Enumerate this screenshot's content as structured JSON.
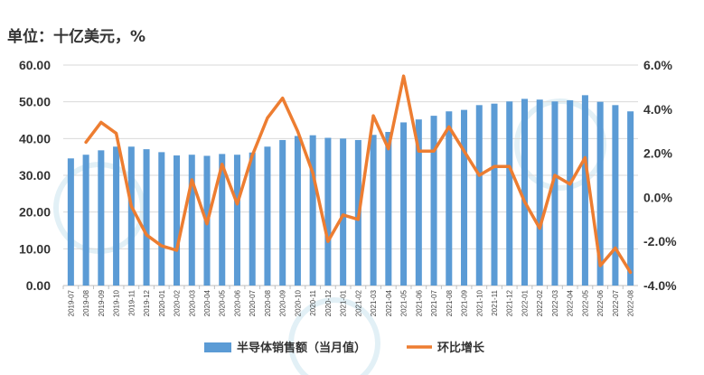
{
  "unit_label": "单位：十亿美元，%",
  "colors": {
    "bar": "#5b9bd5",
    "line": "#ed7d31",
    "grid": "#d9d9d9",
    "axis": "#bfbfbf",
    "watermark": "#d6eaf2"
  },
  "chart_data": {
    "type": "bar+line",
    "title": "",
    "grid": true,
    "legend_position": "bottom",
    "categories": [
      "2019-07",
      "2019-08",
      "2019-09",
      "2019-10",
      "2019-11",
      "2019-12",
      "2020-01",
      "2020-02",
      "2020-03",
      "2020-04",
      "2020-05",
      "2020-06",
      "2020-07",
      "2020-08",
      "2020-09",
      "2020-10",
      "2020-11",
      "2020-12",
      "2021-01",
      "2021-02",
      "2021-03",
      "2021-04",
      "2021-05",
      "2021-06",
      "2021-07",
      "2021-08",
      "2021-09",
      "2021-10",
      "2021-11",
      "2021-12",
      "2022-01",
      "2022-02",
      "2022-03",
      "2022-04",
      "2022-05",
      "2022-06",
      "2022-07",
      "2022-08"
    ],
    "left_axis": {
      "ylim": [
        0,
        60
      ],
      "ticks": [
        "0.00",
        "10.00",
        "20.00",
        "30.00",
        "40.00",
        "50.00",
        "60.00"
      ]
    },
    "right_axis": {
      "ylim": [
        -4,
        6
      ],
      "ticks": [
        "-4.0%",
        "-2.0%",
        "0.0%",
        "2.0%",
        "4.0%",
        "6.0%"
      ]
    },
    "series": [
      {
        "name": "半导体销售额（当月值）",
        "type": "bar",
        "axis": "left",
        "values": [
          34.6,
          35.6,
          36.8,
          37.8,
          37.8,
          37.1,
          36.3,
          35.4,
          35.6,
          35.3,
          35.8,
          35.6,
          36.2,
          37.8,
          39.6,
          40.7,
          40.9,
          40.2,
          40.0,
          39.6,
          41.0,
          41.8,
          44.4,
          45.2,
          46.2,
          47.4,
          47.8,
          49.1,
          49.5,
          50.1,
          50.8,
          50.6,
          50.1,
          50.4,
          51.8,
          50.0,
          49.1,
          47.4
        ]
      },
      {
        "name": "环比增长",
        "type": "line",
        "axis": "right",
        "values": [
          null,
          2.5,
          3.4,
          2.9,
          -0.4,
          -1.7,
          -2.2,
          -2.4,
          0.8,
          -1.2,
          1.5,
          -0.3,
          1.9,
          3.6,
          4.5,
          3.0,
          1.1,
          -2.0,
          -0.8,
          -1.0,
          3.7,
          2.2,
          5.5,
          2.1,
          2.1,
          3.2,
          2.1,
          1.0,
          1.4,
          1.4,
          -0.2,
          -1.4,
          1.0,
          0.6,
          1.8,
          -3.1,
          -2.3,
          -3.4
        ]
      }
    ]
  }
}
